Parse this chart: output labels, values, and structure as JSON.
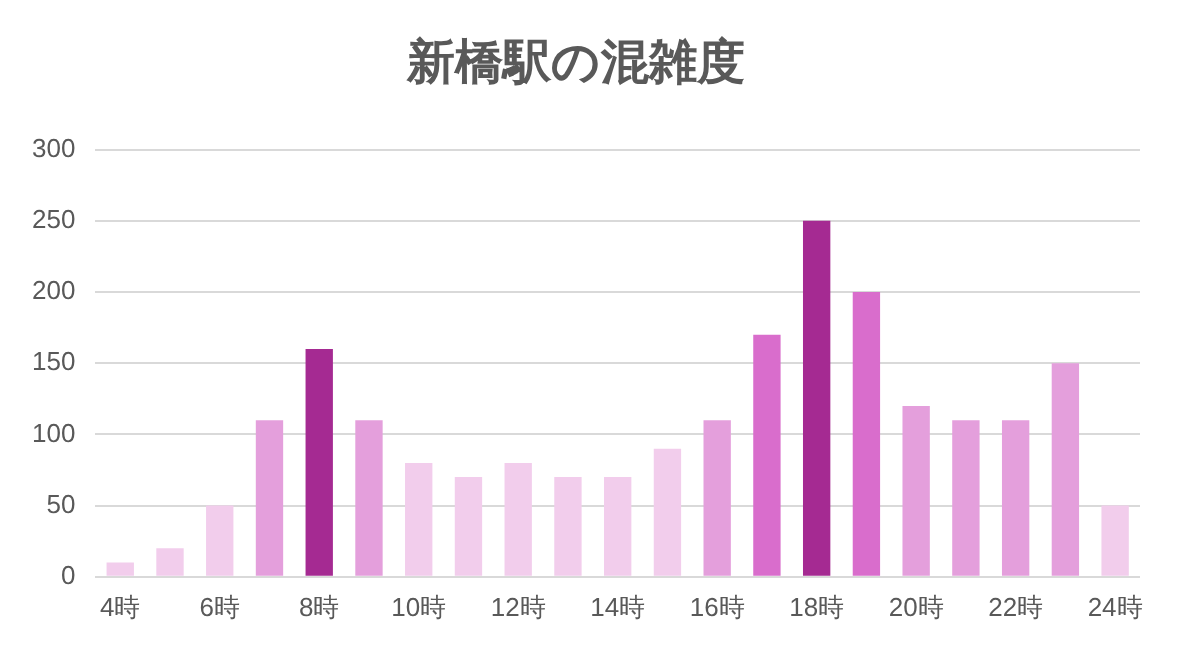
{
  "chart_data": {
    "type": "bar",
    "title": "新橋駅の混雑度",
    "categories": [
      "4時",
      null,
      "6時",
      null,
      "8時",
      null,
      "10時",
      null,
      "12時",
      null,
      "14時",
      null,
      "16時",
      null,
      "18時",
      null,
      "20時",
      null,
      "22時",
      null,
      "24時"
    ],
    "values": [
      10,
      20,
      50,
      110,
      160,
      110,
      80,
      70,
      80,
      70,
      70,
      90,
      110,
      170,
      250,
      200,
      120,
      110,
      110,
      150,
      50
    ],
    "colors": [
      "#f2cdec",
      "#f2cdec",
      "#f2cdec",
      "#e49fdc",
      "#a52a92",
      "#e49fdc",
      "#f2cdec",
      "#f2cdec",
      "#f2cdec",
      "#f2cdec",
      "#f2cdec",
      "#f2cdec",
      "#e49fdc",
      "#d96dcc",
      "#a52a92",
      "#d96dcc",
      "#e49fdc",
      "#e49fdc",
      "#e49fdc",
      "#e49fdc",
      "#f2cdec"
    ],
    "ylim": [
      0,
      300
    ],
    "yticks": [
      0,
      50,
      100,
      150,
      200,
      250,
      300
    ],
    "grid": "y",
    "legend": false
  }
}
